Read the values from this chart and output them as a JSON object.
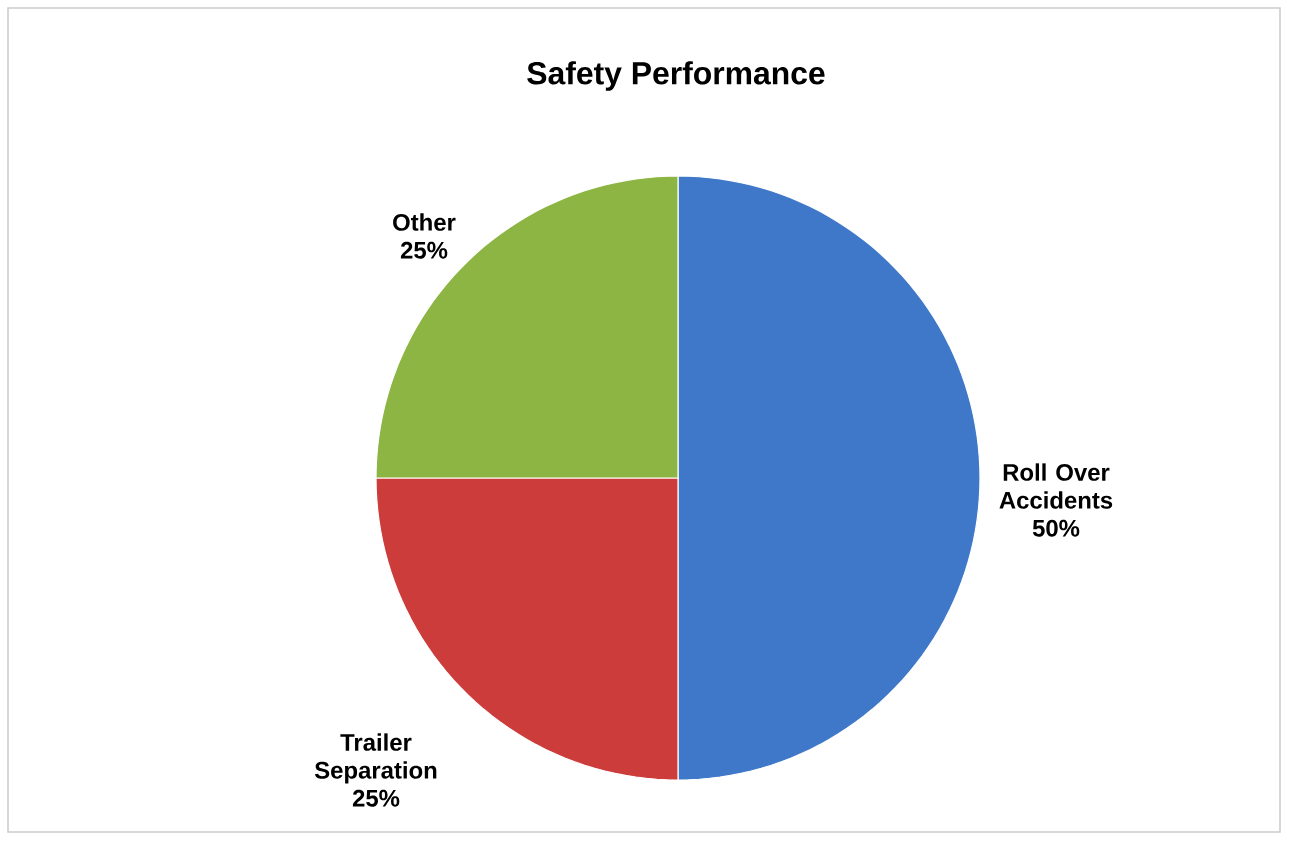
{
  "chart_data": {
    "type": "pie",
    "title": "Safety Performance",
    "categories": [
      "Roll Over Accidents",
      "Trailer Separation",
      "Other"
    ],
    "values": [
      50,
      25,
      25
    ],
    "colors": [
      "#3f78c8",
      "#cc3c3a",
      "#8db543"
    ],
    "value_labels": [
      "50%",
      "25%",
      "25%"
    ]
  }
}
